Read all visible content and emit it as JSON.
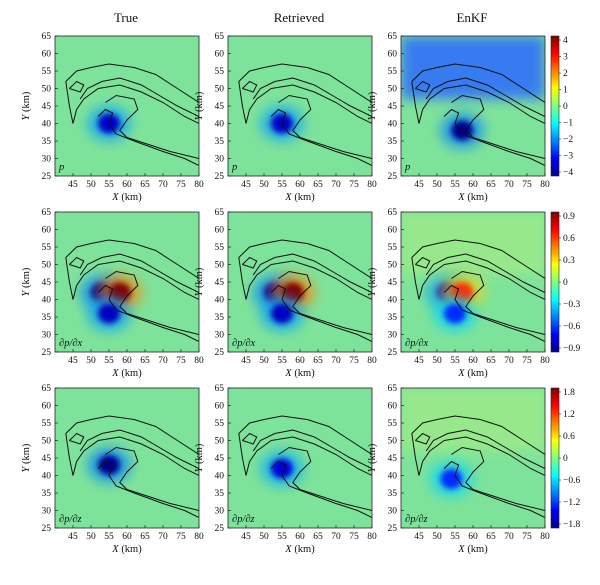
{
  "columns": [
    "True",
    "Retrieved",
    "EnKF"
  ],
  "axes": {
    "x_ticks": [
      "45",
      "50",
      "55",
      "60",
      "65",
      "70",
      "75",
      "80"
    ],
    "y_ticks": [
      "65",
      "60",
      "55",
      "50",
      "45",
      "40",
      "35",
      "30",
      "25"
    ],
    "xlabel_var": "X",
    "xlabel_unit": " (km)",
    "ylabel_var": "Y",
    "ylabel_unit": " (km)"
  },
  "rows": [
    {
      "field_label": "p",
      "colorbar_ticks": [
        "4",
        "3",
        "2",
        "1",
        "0",
        "−1",
        "−2",
        "−3",
        "−4"
      ]
    },
    {
      "field_label": "∂p/∂x",
      "colorbar_ticks": [
        "0.9",
        "0.6",
        "0.3",
        "0",
        "−0.3",
        "−0.6",
        "−0.9"
      ]
    },
    {
      "field_label": "∂p/∂z",
      "colorbar_ticks": [
        "1.8",
        "1.2",
        "0.6",
        "0",
        "−0.6",
        "−1.2",
        "−1.8"
      ]
    }
  ],
  "chart_data": {
    "type": "heatmap",
    "description_fields": [
      "p",
      "∂p/∂x",
      "∂p/∂z"
    ],
    "x_range": [
      40,
      80
    ],
    "y_range": [
      25,
      65
    ],
    "colormap": "jet",
    "background_color": "#7ee39a",
    "colorbar_ranges": [
      [
        -4,
        4
      ],
      [
        -0.9,
        0.9
      ],
      [
        -1.8,
        1.8
      ]
    ],
    "panels": [
      {
        "row": 0,
        "col": 0,
        "blobs": [
          {
            "x": 55,
            "y": 40,
            "value": -3.5
          }
        ]
      },
      {
        "row": 0,
        "col": 1,
        "blobs": [
          {
            "x": 55,
            "y": 40,
            "value": -3.5
          }
        ]
      },
      {
        "row": 0,
        "col": 2,
        "blobs": [
          {
            "x": 57,
            "y": 38,
            "value": -4
          }
        ]
      },
      {
        "row": 1,
        "col": 0,
        "blobs": [
          {
            "x": 53,
            "y": 42,
            "value": -0.9
          },
          {
            "x": 58,
            "y": 42,
            "value": 0.9
          },
          {
            "x": 55,
            "y": 36,
            "value": -0.8
          }
        ]
      },
      {
        "row": 1,
        "col": 1,
        "blobs": [
          {
            "x": 53,
            "y": 42,
            "value": -0.9
          },
          {
            "x": 58,
            "y": 42,
            "value": 0.9
          },
          {
            "x": 55,
            "y": 36,
            "value": -0.8
          }
        ]
      },
      {
        "row": 1,
        "col": 2,
        "blobs": [
          {
            "x": 53,
            "y": 42,
            "value": -0.8
          },
          {
            "x": 57,
            "y": 42,
            "value": 0.6
          },
          {
            "x": 55,
            "y": 36,
            "value": -0.6
          }
        ]
      },
      {
        "row": 2,
        "col": 0,
        "blobs": [
          {
            "x": 55,
            "y": 43,
            "value": -1.8
          }
        ]
      },
      {
        "row": 2,
        "col": 1,
        "blobs": [
          {
            "x": 55,
            "y": 42,
            "value": -1.5
          }
        ]
      },
      {
        "row": 2,
        "col": 2,
        "blobs": [
          {
            "x": 54,
            "y": 39,
            "value": -1.2
          }
        ]
      }
    ]
  }
}
